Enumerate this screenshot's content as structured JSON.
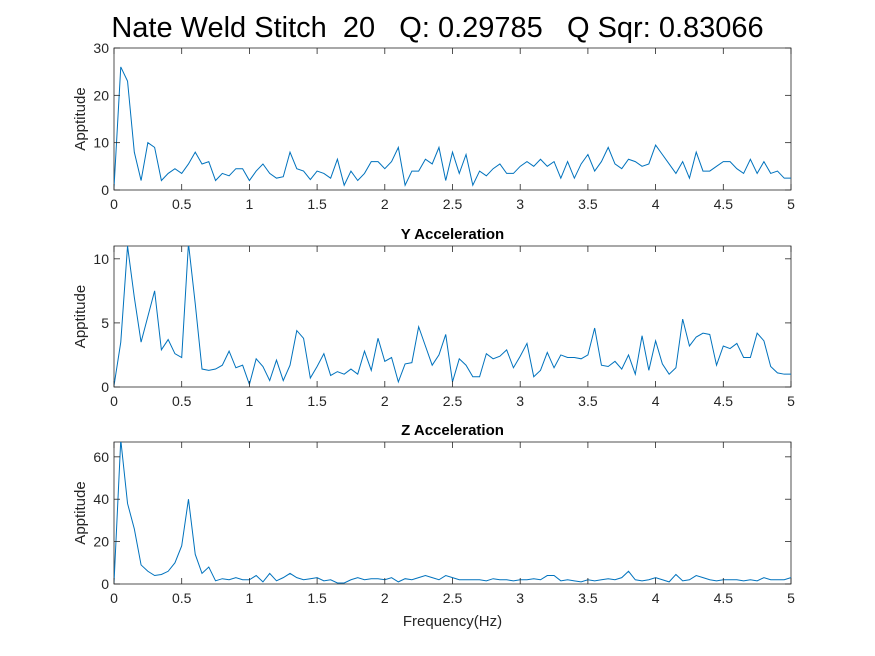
{
  "figure": {
    "title": "Nate Weld Stitch  20   Q: 0.29785   Q Sqr: 0.83066",
    "line_color": "#0072bd"
  },
  "chart_data": [
    {
      "type": "line",
      "title": "",
      "xlabel": "",
      "ylabel": "Apptitude",
      "xlim": [
        0,
        5
      ],
      "ylim": [
        0,
        30
      ],
      "xticks": [
        "0",
        "0.5",
        "1",
        "1.5",
        "2",
        "2.5",
        "3",
        "3.5",
        "4",
        "4.5",
        "5"
      ],
      "yticks": [
        "0",
        "10",
        "20",
        "30"
      ],
      "x_step": 0.05,
      "series": [
        {
          "values": [
            0.5,
            26,
            23,
            8,
            2,
            10,
            9,
            2,
            3.5,
            4.5,
            3.5,
            5.5,
            8,
            5.5,
            6,
            2,
            3.5,
            3,
            4.5,
            4.5,
            2,
            4,
            5.5,
            3.5,
            2.5,
            2.8,
            8,
            4.5,
            4,
            2.2,
            4,
            3.5,
            2.5,
            6.5,
            1,
            4,
            2,
            3.5,
            6,
            6,
            4.5,
            6,
            9,
            1,
            4,
            4,
            6.5,
            5.5,
            9,
            2,
            8,
            3.5,
            7.5,
            1,
            4,
            3,
            4.5,
            5.5,
            3.5,
            3.5,
            5,
            6,
            5,
            6.5,
            5,
            6,
            2.5,
            6,
            2.5,
            5.5,
            7.5,
            4,
            6,
            9,
            5.5,
            4.5,
            6.5,
            6,
            5,
            5.5,
            9.5,
            7.5,
            5.5,
            3.5,
            6,
            2.5,
            8,
            4,
            4,
            5,
            6,
            6,
            4.5,
            3.5,
            6.5,
            3.5,
            6,
            3.5,
            4,
            2.5,
            2.5
          ]
        }
      ]
    },
    {
      "type": "line",
      "title": "Y Acceleration",
      "xlabel": "",
      "ylabel": "Apptitude",
      "xlim": [
        0,
        5
      ],
      "ylim": [
        0,
        11
      ],
      "xticks": [
        "0",
        "0.5",
        "1",
        "1.5",
        "2",
        "2.5",
        "3",
        "3.5",
        "4",
        "4.5",
        "5"
      ],
      "yticks": [
        "0",
        "5",
        "10"
      ],
      "x_step": 0.05,
      "series": [
        {
          "values": [
            0.1,
            3.5,
            11,
            7,
            3.5,
            5.5,
            7.5,
            2.9,
            3.7,
            2.6,
            2.3,
            11.2,
            6.5,
            1.4,
            1.3,
            1.4,
            1.7,
            2.8,
            1.5,
            1.7,
            0.2,
            2.2,
            1.6,
            0.5,
            2.1,
            0.5,
            1.7,
            4.4,
            3.8,
            0.7,
            1.6,
            2.6,
            0.9,
            1.2,
            1,
            1.4,
            1,
            2.8,
            1.3,
            3.8,
            2,
            2.3,
            0.4,
            1.8,
            1.9,
            4.7,
            3.2,
            1.7,
            2.5,
            4.1,
            0.4,
            2.2,
            1.7,
            0.8,
            0.8,
            2.6,
            2.2,
            2.4,
            2.9,
            1.5,
            2.4,
            3.4,
            0.8,
            1.3,
            2.7,
            1.5,
            2.5,
            2.3,
            2.3,
            2.2,
            2.5,
            4.6,
            1.7,
            1.6,
            2,
            1.4,
            2.5,
            1,
            4,
            1.3,
            3.6,
            1.8,
            1,
            1.5,
            5.3,
            3.2,
            3.9,
            4.2,
            4.1,
            1.7,
            3.2,
            3,
            3.4,
            2.3,
            2.3,
            4.2,
            3.6,
            1.6,
            1.1,
            1,
            1
          ]
        }
      ]
    },
    {
      "type": "line",
      "title": "Z Acceleration",
      "xlabel": "Frequency(Hz)",
      "ylabel": "Apptitude",
      "xlim": [
        0,
        5
      ],
      "ylim": [
        0,
        67
      ],
      "xticks": [
        "0",
        "0.5",
        "1",
        "1.5",
        "2",
        "2.5",
        "3",
        "3.5",
        "4",
        "4.5",
        "5"
      ],
      "yticks": [
        "0",
        "20",
        "40",
        "60"
      ],
      "x_step": 0.05,
      "series": [
        {
          "values": [
            0.5,
            68,
            38,
            26,
            9,
            6,
            4,
            4.5,
            6,
            10,
            18,
            40,
            14,
            5,
            8,
            1.5,
            2.5,
            2,
            3,
            2,
            2,
            4,
            1,
            5,
            1.5,
            3,
            5,
            3,
            2,
            2.5,
            3,
            1.5,
            2,
            0.5,
            0.5,
            2,
            3,
            2,
            2.5,
            2.5,
            2,
            3,
            1,
            2.5,
            2,
            3,
            4,
            3,
            2,
            4,
            3,
            2,
            2,
            2,
            2,
            1.5,
            2.5,
            2,
            2,
            1.5,
            2,
            2,
            2.5,
            2,
            4,
            4,
            1.5,
            2,
            1.5,
            1,
            2,
            1.5,
            2,
            2.5,
            2,
            3,
            6,
            2,
            1.5,
            2,
            3,
            2,
            1,
            4.5,
            1.5,
            2,
            4,
            3,
            2,
            1.5,
            2,
            2,
            2,
            1.5,
            2,
            1.5,
            3,
            2,
            2,
            2,
            3
          ]
        }
      ]
    }
  ]
}
